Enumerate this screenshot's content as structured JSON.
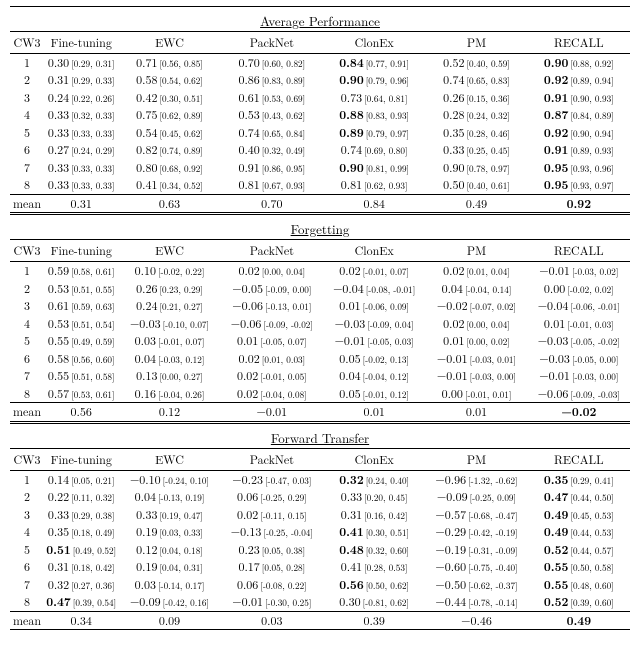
{
  "columns": [
    "CW3",
    "Fine-tuning",
    "EWC",
    "PackNet",
    "ClonEx",
    "PM",
    "RECALL"
  ],
  "sections": [
    {
      "title": "Average Performance",
      "rows": [
        {
          "cw3": "1",
          "cells": [
            {
              "v": "0.30",
              "ci": "[0.29, 0.31]"
            },
            {
              "v": "0.71",
              "ci": "[0.56, 0.85]"
            },
            {
              "v": "0.70",
              "ci": "[0.60, 0.82]"
            },
            {
              "v": "0.84",
              "ci": "[0.77, 0.91]",
              "b": true
            },
            {
              "v": "0.52",
              "ci": "[0.40, 0.59]"
            },
            {
              "v": "0.90",
              "ci": "[0.88, 0.92]",
              "b": true
            }
          ]
        },
        {
          "cw3": "2",
          "cells": [
            {
              "v": "0.31",
              "ci": "[0.29, 0.33]"
            },
            {
              "v": "0.58",
              "ci": "[0.54, 0.62]"
            },
            {
              "v": "0.86",
              "ci": "[0.83, 0.89]"
            },
            {
              "v": "0.90",
              "ci": "[0.79, 0.96]",
              "b": true
            },
            {
              "v": "0.74",
              "ci": "[0.65, 0.83]"
            },
            {
              "v": "0.92",
              "ci": "[0.89, 0.94]",
              "b": true
            }
          ]
        },
        {
          "cw3": "3",
          "cells": [
            {
              "v": "0.24",
              "ci": "[0.22, 0.26]"
            },
            {
              "v": "0.42",
              "ci": "[0.30, 0.51]"
            },
            {
              "v": "0.61",
              "ci": "[0.53, 0.69]"
            },
            {
              "v": "0.73",
              "ci": "[0.64, 0.81]"
            },
            {
              "v": "0.26",
              "ci": "[0.15, 0.36]"
            },
            {
              "v": "0.91",
              "ci": "[0.90, 0.93]",
              "b": true
            }
          ]
        },
        {
          "cw3": "4",
          "cells": [
            {
              "v": "0.33",
              "ci": "[0.32, 0.33]"
            },
            {
              "v": "0.75",
              "ci": "[0.62, 0.89]"
            },
            {
              "v": "0.53",
              "ci": "[0.43, 0.62]"
            },
            {
              "v": "0.88",
              "ci": "[0.83, 0.93]",
              "b": true
            },
            {
              "v": "0.28",
              "ci": "[0.24, 0.32]"
            },
            {
              "v": "0.87",
              "ci": "[0.84, 0.89]",
              "b": true
            }
          ]
        },
        {
          "cw3": "5",
          "cells": [
            {
              "v": "0.33",
              "ci": "[0.33, 0.33]"
            },
            {
              "v": "0.54",
              "ci": "[0.45, 0.62]"
            },
            {
              "v": "0.74",
              "ci": "[0.65, 0.84]"
            },
            {
              "v": "0.89",
              "ci": "[0.79, 0.97]",
              "b": true
            },
            {
              "v": "0.35",
              "ci": "[0.28, 0.46]"
            },
            {
              "v": "0.92",
              "ci": "[0.90, 0.94]",
              "b": true
            }
          ]
        },
        {
          "cw3": "6",
          "cells": [
            {
              "v": "0.27",
              "ci": "[0.24, 0.29]"
            },
            {
              "v": "0.82",
              "ci": "[0.74, 0.89]"
            },
            {
              "v": "0.40",
              "ci": "[0.32, 0.49]"
            },
            {
              "v": "0.74",
              "ci": "[0.69, 0.80]"
            },
            {
              "v": "0.33",
              "ci": "[0.25, 0.45]"
            },
            {
              "v": "0.91",
              "ci": "[0.89, 0.93]",
              "b": true
            }
          ]
        },
        {
          "cw3": "7",
          "cells": [
            {
              "v": "0.33",
              "ci": "[0.33, 0.33]"
            },
            {
              "v": "0.80",
              "ci": "[0.68, 0.92]"
            },
            {
              "v": "0.91",
              "ci": "[0.86, 0.95]"
            },
            {
              "v": "0.90",
              "ci": "[0.81, 0.99]",
              "b": true
            },
            {
              "v": "0.90",
              "ci": "[0.78, 0.97]"
            },
            {
              "v": "0.95",
              "ci": "[0.93, 0.96]",
              "b": true
            }
          ]
        },
        {
          "cw3": "8",
          "cells": [
            {
              "v": "0.33",
              "ci": "[0.33, 0.33]"
            },
            {
              "v": "0.41",
              "ci": "[0.34, 0.52]"
            },
            {
              "v": "0.81",
              "ci": "[0.67, 0.93]"
            },
            {
              "v": "0.81",
              "ci": "[0.62, 0.93]"
            },
            {
              "v": "0.50",
              "ci": "[0.40, 0.61]"
            },
            {
              "v": "0.95",
              "ci": "[0.93, 0.97]",
              "b": true
            }
          ]
        }
      ],
      "mean": [
        {
          "v": "0.31"
        },
        {
          "v": "0.63"
        },
        {
          "v": "0.70"
        },
        {
          "v": "0.84"
        },
        {
          "v": "0.49"
        },
        {
          "v": "0.92",
          "b": true
        }
      ]
    },
    {
      "title": "Forgetting",
      "rows": [
        {
          "cw3": "1",
          "cells": [
            {
              "v": "0.59",
              "ci": "[0.58, 0.61]"
            },
            {
              "v": "0.10",
              "ci": "[-0.02, 0.22]"
            },
            {
              "v": "0.02",
              "ci": "[0.00, 0.04]"
            },
            {
              "v": "0.02",
              "ci": "[-0.01, 0.07]"
            },
            {
              "v": "0.02",
              "ci": "[0.01, 0.04]"
            },
            {
              "v": "−0.01",
              "ci": "[-0.03, 0.02]"
            }
          ]
        },
        {
          "cw3": "2",
          "cells": [
            {
              "v": "0.53",
              "ci": "[0.51, 0.55]"
            },
            {
              "v": "0.26",
              "ci": "[0.23, 0.29]"
            },
            {
              "v": "−0.05",
              "ci": "[-0.09, 0.00]"
            },
            {
              "v": "−0.04",
              "ci": "[-0.08, -0.01]"
            },
            {
              "v": "0.04",
              "ci": "[-0.04, 0.14]"
            },
            {
              "v": "0.00",
              "ci": "[-0.02, 0.02]"
            }
          ]
        },
        {
          "cw3": "3",
          "cells": [
            {
              "v": "0.61",
              "ci": "[0.59, 0.63]"
            },
            {
              "v": "0.24",
              "ci": "[0.21, 0.27]"
            },
            {
              "v": "−0.06",
              "ci": "[-0.13, 0.01]"
            },
            {
              "v": "0.01",
              "ci": "[-0.06, 0.09]"
            },
            {
              "v": "−0.02",
              "ci": "[-0.07, 0.02]"
            },
            {
              "v": "−0.04",
              "ci": "[-0.06, -0.01]"
            }
          ]
        },
        {
          "cw3": "4",
          "cells": [
            {
              "v": "0.53",
              "ci": "[0.51, 0.54]"
            },
            {
              "v": "−0.03",
              "ci": "[-0.10, 0.07]"
            },
            {
              "v": "−0.06",
              "ci": "[-0.09, -0.02]"
            },
            {
              "v": "−0.03",
              "ci": "[-0.09, 0.04]"
            },
            {
              "v": "0.02",
              "ci": "[0.00, 0.04]"
            },
            {
              "v": "0.01",
              "ci": "[-0.01, 0.03]"
            }
          ]
        },
        {
          "cw3": "5",
          "cells": [
            {
              "v": "0.55",
              "ci": "[0.49, 0.59]"
            },
            {
              "v": "0.03",
              "ci": "[-0.01, 0.07]"
            },
            {
              "v": "0.01",
              "ci": "[-0.05, 0.07]"
            },
            {
              "v": "−0.01",
              "ci": "[-0.05, 0.03]"
            },
            {
              "v": "0.01",
              "ci": "[0.00, 0.02]"
            },
            {
              "v": "−0.03",
              "ci": "[-0.05, -0.02]"
            }
          ]
        },
        {
          "cw3": "6",
          "cells": [
            {
              "v": "0.58",
              "ci": "[0.56, 0.60]"
            },
            {
              "v": "0.04",
              "ci": "[-0.03, 0.12]"
            },
            {
              "v": "0.02",
              "ci": "[0.01, 0.03]"
            },
            {
              "v": "0.05",
              "ci": "[-0.02, 0.13]"
            },
            {
              "v": "−0.01",
              "ci": "[-0.03, 0.01]"
            },
            {
              "v": "−0.03",
              "ci": "[-0.05, 0.00]"
            }
          ]
        },
        {
          "cw3": "7",
          "cells": [
            {
              "v": "0.55",
              "ci": "[0.51, 0.58]"
            },
            {
              "v": "0.13",
              "ci": "[0.00, 0.27]"
            },
            {
              "v": "0.02",
              "ci": "[-0.01, 0.05]"
            },
            {
              "v": "0.04",
              "ci": "[-0.04, 0.12]"
            },
            {
              "v": "−0.01",
              "ci": "[-0.03, 0.00]"
            },
            {
              "v": "−0.01",
              "ci": "[-0.03, 0.00]"
            }
          ]
        },
        {
          "cw3": "8",
          "cells": [
            {
              "v": "0.57",
              "ci": "[0.53, 0.61]"
            },
            {
              "v": "0.16",
              "ci": "[-0.04, 0.26]"
            },
            {
              "v": "0.02",
              "ci": "[-0.04, 0.08]"
            },
            {
              "v": "0.05",
              "ci": "[-0.01, 0.12]"
            },
            {
              "v": "0.00",
              "ci": "[-0.01, 0.01]"
            },
            {
              "v": "−0.06",
              "ci": "[-0.09, -0.03]"
            }
          ]
        }
      ],
      "mean": [
        {
          "v": "0.56"
        },
        {
          "v": "0.12"
        },
        {
          "v": "−0.01"
        },
        {
          "v": "0.01"
        },
        {
          "v": "0.01"
        },
        {
          "v": "−0.02",
          "b": true
        }
      ]
    },
    {
      "title": "Forward Transfer",
      "rows": [
        {
          "cw3": "1",
          "cells": [
            {
              "v": "0.14",
              "ci": "[0.05, 0.21]"
            },
            {
              "v": "−0.10",
              "ci": "[-0.24, 0.10]"
            },
            {
              "v": "−0.23",
              "ci": "[-0.47, 0.03]"
            },
            {
              "v": "0.32",
              "ci": "[0.24, 0.40]",
              "b": true
            },
            {
              "v": "−0.96",
              "ci": "[-1.32, -0.62]"
            },
            {
              "v": "0.35",
              "ci": "[0.29, 0.41]",
              "b": true
            }
          ]
        },
        {
          "cw3": "2",
          "cells": [
            {
              "v": "0.22",
              "ci": "[0.11, 0.32]"
            },
            {
              "v": "0.04",
              "ci": "[-0.13, 0.19]"
            },
            {
              "v": "0.06",
              "ci": "[-0.25, 0.29]"
            },
            {
              "v": "0.33",
              "ci": "[0.20, 0.45]"
            },
            {
              "v": "−0.09",
              "ci": "[-0.25, 0.09]"
            },
            {
              "v": "0.47",
              "ci": "[0.44, 0.50]",
              "b": true
            }
          ]
        },
        {
          "cw3": "3",
          "cells": [
            {
              "v": "0.33",
              "ci": "[0.29, 0.38]"
            },
            {
              "v": "0.33",
              "ci": "[0.19, 0.47]"
            },
            {
              "v": "0.02",
              "ci": "[-0.11, 0.15]"
            },
            {
              "v": "0.31",
              "ci": "[0.16, 0.42]"
            },
            {
              "v": "−0.57",
              "ci": "[-0.68, -0.47]"
            },
            {
              "v": "0.49",
              "ci": "[0.45, 0.53]",
              "b": true
            }
          ]
        },
        {
          "cw3": "4",
          "cells": [
            {
              "v": "0.35",
              "ci": "[0.18, 0.49]"
            },
            {
              "v": "0.19",
              "ci": "[0.03, 0.33]"
            },
            {
              "v": "−0.13",
              "ci": "[-0.25, -0.04]"
            },
            {
              "v": "0.41",
              "ci": "[0.30, 0.51]",
              "b": true
            },
            {
              "v": "−0.29",
              "ci": "[-0.42, -0.19]"
            },
            {
              "v": "0.49",
              "ci": "[0.44, 0.53]",
              "b": true
            }
          ]
        },
        {
          "cw3": "5",
          "cells": [
            {
              "v": "0.51",
              "ci": "[0.49, 0.52]",
              "b": true
            },
            {
              "v": "0.12",
              "ci": "[0.04, 0.18]"
            },
            {
              "v": "0.23",
              "ci": "[0.05, 0.38]"
            },
            {
              "v": "0.48",
              "ci": "[0.32, 0.60]",
              "b": true
            },
            {
              "v": "−0.19",
              "ci": "[-0.31, -0.09]"
            },
            {
              "v": "0.52",
              "ci": "[0.44, 0.57]",
              "b": true
            }
          ]
        },
        {
          "cw3": "6",
          "cells": [
            {
              "v": "0.31",
              "ci": "[0.18, 0.42]"
            },
            {
              "v": "0.19",
              "ci": "[0.04, 0.31]"
            },
            {
              "v": "0.17",
              "ci": "[0.05, 0.28]"
            },
            {
              "v": "0.41",
              "ci": "[0.28, 0.53]"
            },
            {
              "v": "−0.60",
              "ci": "[-0.75, -0.40]"
            },
            {
              "v": "0.55",
              "ci": "[0.50, 0.58]",
              "b": true
            }
          ]
        },
        {
          "cw3": "7",
          "cells": [
            {
              "v": "0.32",
              "ci": "[0.27, 0.36]"
            },
            {
              "v": "0.03",
              "ci": "[-0.14, 0.17]"
            },
            {
              "v": "0.06",
              "ci": "[-0.08, 0.22]"
            },
            {
              "v": "0.56",
              "ci": "[0.50, 0.62]",
              "b": true
            },
            {
              "v": "−0.50",
              "ci": "[-0.62, -0.37]"
            },
            {
              "v": "0.55",
              "ci": "[0.48, 0.60]",
              "b": true
            }
          ]
        },
        {
          "cw3": "8",
          "cells": [
            {
              "v": "0.47",
              "ci": "[0.39, 0.54]",
              "b": true
            },
            {
              "v": "−0.09",
              "ci": "[-0.42, 0.16]"
            },
            {
              "v": "−0.01",
              "ci": "[-0.30, 0.25]"
            },
            {
              "v": "0.30",
              "ci": "[-0.81, 0.62]"
            },
            {
              "v": "−0.44",
              "ci": "[-0.78, -0.14]"
            },
            {
              "v": "0.52",
              "ci": "[0.39, 0.60]",
              "b": true
            }
          ]
        }
      ],
      "mean": [
        {
          "v": "0.34"
        },
        {
          "v": "0.09"
        },
        {
          "v": "0.03"
        },
        {
          "v": "0.39"
        },
        {
          "v": "−0.46"
        },
        {
          "v": "0.49",
          "b": true
        }
      ]
    }
  ],
  "mean_label": "mean"
}
